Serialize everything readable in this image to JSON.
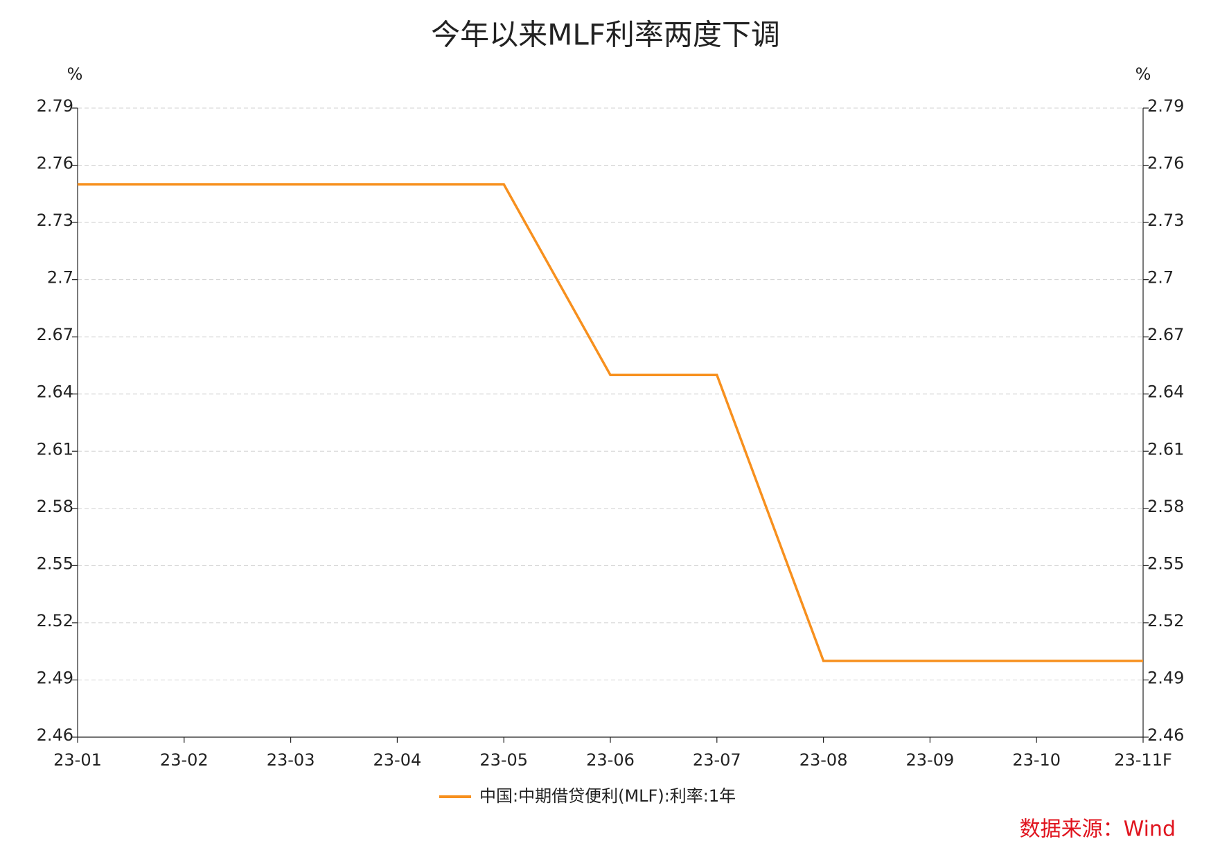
{
  "chart_data": {
    "type": "line",
    "title": "今年以来MLF利率两度下调",
    "categories": [
      "23-01",
      "23-02",
      "23-03",
      "23-04",
      "23-05",
      "23-06",
      "23-07",
      "23-08",
      "23-09",
      "23-10",
      "23-11F"
    ],
    "series": [
      {
        "name": "中国:中期借贷便利(MLF):利率:1年",
        "color": "#f7901e",
        "values": [
          2.75,
          2.75,
          2.75,
          2.75,
          2.75,
          2.65,
          2.65,
          2.5,
          2.5,
          2.5,
          2.5
        ]
      }
    ],
    "y_unit": "%",
    "y2_unit": "%",
    "ylim": [
      2.46,
      2.79
    ],
    "yticks": [
      2.46,
      2.49,
      2.52,
      2.55,
      2.58,
      2.61,
      2.64,
      2.67,
      2.7,
      2.73,
      2.76,
      2.79
    ],
    "y2lim": [
      2.46,
      2.79
    ],
    "y2ticks": [
      2.46,
      2.49,
      2.52,
      2.55,
      2.58,
      2.61,
      2.64,
      2.67,
      2.7,
      2.73,
      2.76,
      2.79
    ],
    "grid": true,
    "legend": "bottom",
    "source": "数据来源：Wind"
  }
}
